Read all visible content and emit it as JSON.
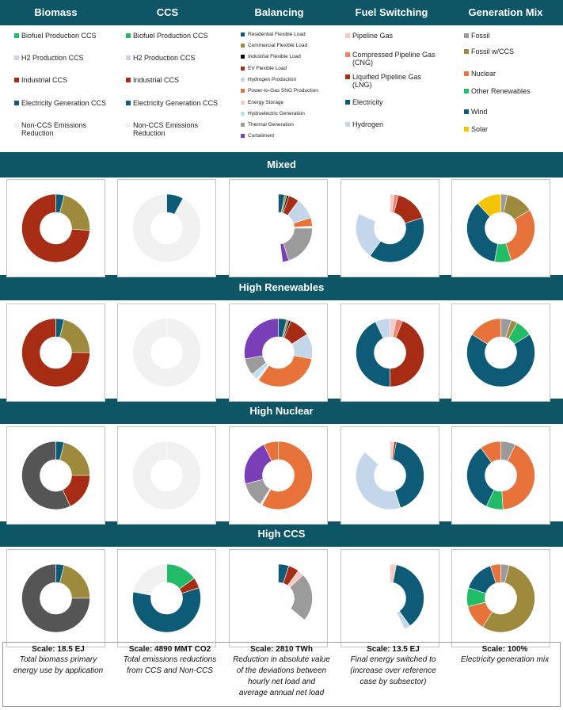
{
  "columns": [
    "Biomass",
    "CCS",
    "Balancing",
    "Fuel Switching",
    "Generation Mix"
  ],
  "legends": [
    [
      {
        "label": "Biofuel Production CCS",
        "color": "#22bb66"
      },
      {
        "label": "H2 Production CCS",
        "color": "#c4d6ea"
      },
      {
        "label": "Industrial CCS",
        "color": "#a62c14"
      },
      {
        "label": "Electricity Generation CCS",
        "color": "#0e5b77"
      },
      {
        "label": "Non-CCS Emissions Reduction",
        "color": "#f1f1f1"
      }
    ],
    [
      {
        "label": "Biofuel Production CCS",
        "color": "#22bb66"
      },
      {
        "label": "H2 Production CCS",
        "color": "#c4d6ea"
      },
      {
        "label": "Industrial CCS",
        "color": "#a62c14"
      },
      {
        "label": "Electricity Generation CCS",
        "color": "#0e5b77"
      },
      {
        "label": "Non-CCS Emissions Reduction",
        "color": "#f1f1f1"
      }
    ],
    [
      {
        "label": "Residential Flexible Load",
        "color": "#0e5b77"
      },
      {
        "label": "Commercial Flexible Load",
        "color": "#9e8a3c"
      },
      {
        "label": "Industrial Flexible Load",
        "color": "#111111"
      },
      {
        "label": "EV Flexible Load",
        "color": "#a62c14"
      },
      {
        "label": "Hydrogen Production",
        "color": "#c4d6ea"
      },
      {
        "label": "Power-to-Gas SNG Production",
        "color": "#e8733a"
      },
      {
        "label": "Energy Storage",
        "color": "#f5c9c6"
      },
      {
        "label": "Hydroelectric Generation",
        "color": "#bde0ee"
      },
      {
        "label": "Thermal Generation",
        "color": "#9b9b9b"
      },
      {
        "label": "Curtailment",
        "color": "#7a3fb8"
      }
    ],
    [
      {
        "label": "Pipeline Gas",
        "color": "#f5c9c6"
      },
      {
        "label": "Compressed Pipeline Gas (CNG)",
        "color": "#f08070"
      },
      {
        "label": "Liquified Pipeline Gas (LNG)",
        "color": "#a62c14"
      },
      {
        "label": "Electricity",
        "color": "#0e5b77"
      },
      {
        "label": "Hydrogen",
        "color": "#c4d6ea"
      }
    ],
    [
      {
        "label": "Fossil",
        "color": "#9b9b9b"
      },
      {
        "label": "Fossil w/CCS",
        "color": "#9e8a3c"
      },
      {
        "label": "Nuclear",
        "color": "#e8733a"
      },
      {
        "label": "Other Renewables",
        "color": "#22bb66"
      },
      {
        "label": "Wind",
        "color": "#0e5b77"
      },
      {
        "label": "Solar",
        "color": "#f5c400"
      }
    ]
  ],
  "scenarios": [
    "Mixed",
    "High Renewables",
    "High Nuclear",
    "High CCS"
  ],
  "chart_data": {
    "type": "donut-grid",
    "rows": [
      [
        {
          "slices": [
            {
              "v": 4,
              "c": "#0e5b77"
            },
            {
              "v": 22,
              "c": "#9e8a3c"
            },
            {
              "v": 74,
              "c": "#a62c14"
            }
          ]
        },
        {
          "slices": [
            {
              "v": 8,
              "c": "#0e5b77"
            },
            {
              "v": 92,
              "c": "#f1f1f1"
            }
          ]
        },
        {
          "slices": [
            {
              "v": 3,
              "c": "#0e5b77"
            },
            {
              "v": 1,
              "c": "#9e8a3c"
            },
            {
              "v": 1,
              "c": "#111111"
            },
            {
              "v": 5,
              "c": "#a62c14"
            },
            {
              "v": 10,
              "c": "#c4d6ea"
            },
            {
              "v": 4,
              "c": "#e8733a"
            },
            {
              "v": 1,
              "c": "#f1f1f1"
            },
            {
              "v": 20,
              "c": "#9b9b9b"
            },
            {
              "v": 3,
              "c": "#7a3fb8"
            },
            {
              "v": 52,
              "c": null
            }
          ]
        },
        {
          "slices": [
            {
              "v": 2,
              "c": "#f5c9c6"
            },
            {
              "v": 2,
              "c": "#f08070"
            },
            {
              "v": 16,
              "c": "#a62c14"
            },
            {
              "v": 40,
              "c": "#0e5b77"
            },
            {
              "v": 22,
              "c": "#c4d6ea"
            },
            {
              "v": 18,
              "c": null
            }
          ]
        },
        {
          "slices": [
            {
              "v": 3,
              "c": "#9b9b9b"
            },
            {
              "v": 13,
              "c": "#9e8a3c"
            },
            {
              "v": 29,
              "c": "#e8733a"
            },
            {
              "v": 8,
              "c": "#22bb66"
            },
            {
              "v": 35,
              "c": "#0e5b77"
            },
            {
              "v": 12,
              "c": "#f5c400"
            }
          ]
        }
      ],
      [
        {
          "slices": [
            {
              "v": 4,
              "c": "#0e5b77"
            },
            {
              "v": 21,
              "c": "#9e8a3c"
            },
            {
              "v": 75,
              "c": "#a62c14"
            }
          ]
        },
        {
          "slices": [
            {
              "v": 100,
              "c": "#f1f1f1"
            }
          ]
        },
        {
          "slices": [
            {
              "v": 4,
              "c": "#0e5b77"
            },
            {
              "v": 1,
              "c": "#9e8a3c"
            },
            {
              "v": 1,
              "c": "#111111"
            },
            {
              "v": 10,
              "c": "#a62c14"
            },
            {
              "v": 12,
              "c": "#c4d6ea"
            },
            {
              "v": 32,
              "c": "#e8733a"
            },
            {
              "v": 1,
              "c": "#f1f1f1"
            },
            {
              "v": 3,
              "c": "#bde0ee"
            },
            {
              "v": 8,
              "c": "#9b9b9b"
            },
            {
              "v": 28,
              "c": "#7a3fb8"
            }
          ]
        },
        {
          "slices": [
            {
              "v": 3,
              "c": "#f5c9c6"
            },
            {
              "v": 3,
              "c": "#f08070"
            },
            {
              "v": 44,
              "c": "#a62c14"
            },
            {
              "v": 43,
              "c": "#0e5b77"
            },
            {
              "v": 7,
              "c": "#c4d6ea"
            }
          ]
        },
        {
          "slices": [
            {
              "v": 5,
              "c": "#9b9b9b"
            },
            {
              "v": 3,
              "c": "#9e8a3c"
            },
            {
              "v": 8,
              "c": "#22bb66"
            },
            {
              "v": 68,
              "c": "#0e5b77"
            },
            {
              "v": 16,
              "c": "#e8733a"
            }
          ]
        }
      ],
      [
        {
          "slices": [
            {
              "v": 4,
              "c": "#0e5b77"
            },
            {
              "v": 21,
              "c": "#9e8a3c"
            },
            {
              "v": 18,
              "c": "#a62c14"
            },
            {
              "v": 57,
              "c": "#555555"
            }
          ]
        },
        {
          "slices": [
            {
              "v": 100,
              "c": "#f1f1f1"
            }
          ]
        },
        {
          "slices": [
            {
              "v": 58,
              "c": "#e8733a"
            },
            {
              "v": 1,
              "c": "#f1f1f1"
            },
            {
              "v": 12,
              "c": "#9b9b9b"
            },
            {
              "v": 22,
              "c": "#7a3fb8"
            },
            {
              "v": 7,
              "c": "#e8733a"
            }
          ]
        },
        {
          "slices": [
            {
              "v": 2,
              "c": "#f5c9c6"
            },
            {
              "v": 1,
              "c": "#a62c14"
            },
            {
              "v": 42,
              "c": "#0e5b77"
            },
            {
              "v": 42,
              "c": "#c4d6ea"
            },
            {
              "v": 13,
              "c": null
            }
          ]
        },
        {
          "slices": [
            {
              "v": 7,
              "c": "#9b9b9b"
            },
            {
              "v": 42,
              "c": "#e8733a"
            },
            {
              "v": 8,
              "c": "#22bb66"
            },
            {
              "v": 33,
              "c": "#0e5b77"
            },
            {
              "v": 10,
              "c": "#e8733a"
            }
          ]
        }
      ],
      [
        {
          "slices": [
            {
              "v": 4,
              "c": "#0e5b77"
            },
            {
              "v": 21,
              "c": "#9e8a3c"
            },
            {
              "v": 75,
              "c": "#555555"
            }
          ]
        },
        {
          "slices": [
            {
              "v": 15,
              "c": "#22bb66"
            },
            {
              "v": 5,
              "c": "#a62c14"
            },
            {
              "v": 58,
              "c": "#0e5b77"
            },
            {
              "v": 22,
              "c": "#f1f1f1"
            }
          ]
        },
        {
          "slices": [
            {
              "v": 5,
              "c": "#0e5b77"
            },
            {
              "v": 5,
              "c": "#a62c14"
            },
            {
              "v": 3,
              "c": "#f5c9c6"
            },
            {
              "v": 23,
              "c": "#9b9b9b"
            },
            {
              "v": 64,
              "c": null
            }
          ]
        },
        {
          "slices": [
            {
              "v": 3,
              "c": "#f5c9c6"
            },
            {
              "v": 37,
              "c": "#0e5b77"
            },
            {
              "v": 3,
              "c": "#c4d6ea"
            },
            {
              "v": 57,
              "c": null
            }
          ]
        },
        {
          "slices": [
            {
              "v": 4,
              "c": "#9b9b9b"
            },
            {
              "v": 55,
              "c": "#9e8a3c"
            },
            {
              "v": 12,
              "c": "#e8733a"
            },
            {
              "v": 9,
              "c": "#22bb66"
            },
            {
              "v": 15,
              "c": "#0e5b77"
            },
            {
              "v": 5,
              "c": "#e8733a"
            }
          ]
        }
      ]
    ]
  },
  "footer": [
    {
      "scale": "Scale: 18.5 EJ",
      "desc": [
        "Total biomass primary",
        "energy use by application"
      ]
    },
    {
      "scale": "Scale: 4890 MMT CO2",
      "desc": [
        "Total emissions reductions",
        "from CCS and Non-CCS"
      ]
    },
    {
      "scale": "Scale: 2810 TWh",
      "desc": [
        "Reduction in absolute value",
        "of the deviations between",
        "hourly net load and",
        "average annual net load"
      ]
    },
    {
      "scale": "Scale: 13.5 EJ",
      "desc": [
        "Final energy switched to",
        "(increase over reference",
        "case by subsector)"
      ]
    },
    {
      "scale": "Scale: 100%",
      "desc": [
        "Electricity generation mix"
      ]
    }
  ]
}
